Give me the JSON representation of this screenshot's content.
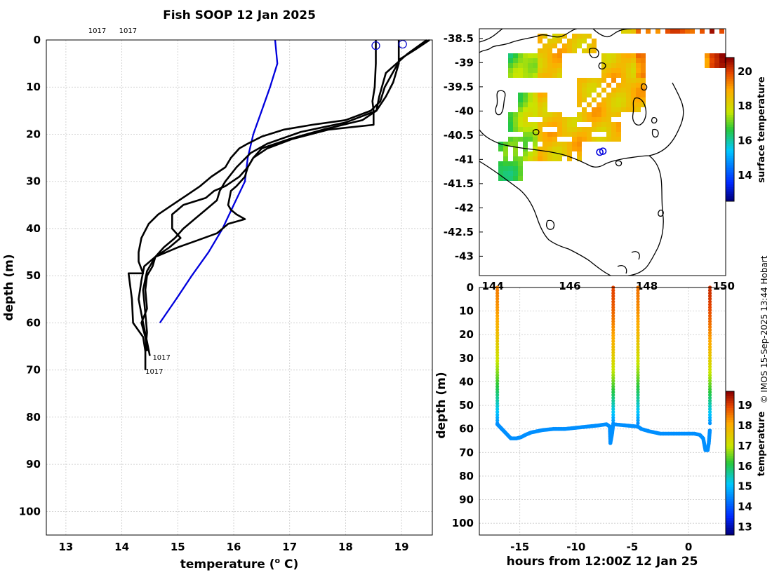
{
  "credit": "© IMOS 15-Sep-2025 13:44 Hobart",
  "chart_data": [
    {
      "type": "line",
      "title": "Fish SOOP 12 Jan 2025",
      "xlabel": "temperature (o C)",
      "xlabel_main": "temperature (",
      "xlabel_sup": "o",
      "xlabel_end": " C)",
      "ylabel": "depth (m)",
      "xlim": [
        12.65,
        19.55
      ],
      "ylim": [
        105,
        0
      ],
      "xticks": [
        13,
        14,
        15,
        16,
        17,
        18,
        19
      ],
      "yticks": [
        0,
        10,
        20,
        30,
        40,
        50,
        60,
        70,
        80,
        90,
        100
      ],
      "profile_labels": [
        {
          "text": "1017",
          "temperature": 13.4,
          "depth": -2.1
        },
        {
          "text": "1017",
          "temperature": 13.95,
          "depth": -2.1
        },
        {
          "text": "1017",
          "temperature": 14.55,
          "depth": 67.2
        },
        {
          "text": "1017",
          "temperature": 14.42,
          "depth": 70.2
        }
      ],
      "surface_markers": [
        {
          "temperature": 18.54,
          "depth": 1.2
        },
        {
          "temperature": 19.02,
          "depth": 0.9
        }
      ],
      "series": [
        {
          "name": "climatology",
          "color": "#0000dd",
          "points": [
            [
              16.74,
              0
            ],
            [
              16.78,
              5
            ],
            [
              16.65,
              10
            ],
            [
              16.5,
              15
            ],
            [
              16.35,
              20
            ],
            [
              16.25,
              25
            ],
            [
              16.2,
              30
            ],
            [
              16.0,
              35
            ],
            [
              15.8,
              40
            ],
            [
              15.55,
              45
            ],
            [
              15.25,
              50
            ],
            [
              14.97,
              55
            ],
            [
              14.68,
              60
            ]
          ]
        },
        {
          "name": "profile 1",
          "color": "#000000",
          "points": [
            [
              19.5,
              0
            ],
            [
              19.25,
              2
            ],
            [
              18.98,
              4
            ],
            [
              18.7,
              10
            ],
            [
              18.62,
              13
            ],
            [
              18.45,
              15
            ],
            [
              18.0,
              17
            ],
            [
              17.4,
              18
            ],
            [
              16.9,
              19
            ],
            [
              16.5,
              20.5
            ],
            [
              16.25,
              22
            ],
            [
              16.1,
              23
            ],
            [
              15.95,
              25
            ],
            [
              15.85,
              27
            ],
            [
              15.6,
              29
            ],
            [
              15.4,
              31
            ],
            [
              15.15,
              33
            ],
            [
              14.9,
              35
            ],
            [
              14.65,
              37
            ],
            [
              14.48,
              39
            ],
            [
              14.35,
              42
            ],
            [
              14.3,
              45
            ],
            [
              14.3,
              47
            ],
            [
              14.38,
              49.5
            ],
            [
              14.12,
              49.5
            ],
            [
              14.18,
              55
            ],
            [
              14.2,
              60
            ],
            [
              14.38,
              63
            ],
            [
              14.42,
              66
            ],
            [
              14.42,
              70
            ]
          ]
        },
        {
          "name": "profile 2",
          "color": "#000000",
          "points": [
            [
              19.45,
              0
            ],
            [
              19.1,
              3
            ],
            [
              18.72,
              7
            ],
            [
              18.6,
              12
            ],
            [
              18.55,
              15
            ],
            [
              18.3,
              17
            ],
            [
              17.6,
              19
            ],
            [
              17.0,
              21
            ],
            [
              16.5,
              23
            ],
            [
              16.35,
              25
            ],
            [
              16.25,
              27
            ],
            [
              16.1,
              29
            ],
            [
              15.85,
              31
            ],
            [
              15.65,
              32
            ],
            [
              15.5,
              33.5
            ],
            [
              15.1,
              35
            ],
            [
              14.9,
              37
            ],
            [
              14.9,
              40
            ],
            [
              15.05,
              42
            ],
            [
              14.85,
              44
            ],
            [
              14.6,
              46
            ],
            [
              14.4,
              48
            ],
            [
              14.35,
              51
            ],
            [
              14.3,
              55
            ],
            [
              14.38,
              60
            ],
            [
              14.45,
              64
            ],
            [
              14.5,
              67
            ]
          ]
        },
        {
          "name": "profile 3",
          "color": "#000000",
          "points": [
            [
              18.95,
              0
            ],
            [
              18.95,
              5
            ],
            [
              18.85,
              9
            ],
            [
              18.72,
              12
            ],
            [
              18.55,
              15
            ],
            [
              18.0,
              17.5
            ],
            [
              17.2,
              19.5
            ],
            [
              16.6,
              22
            ],
            [
              16.3,
              24
            ],
            [
              16.05,
              27
            ],
            [
              15.85,
              30
            ],
            [
              15.75,
              32
            ],
            [
              15.7,
              34
            ],
            [
              15.5,
              36
            ],
            [
              15.3,
              38
            ],
            [
              15.1,
              40
            ],
            [
              14.95,
              42
            ],
            [
              14.75,
              44
            ],
            [
              14.6,
              46
            ],
            [
              14.55,
              48
            ],
            [
              14.45,
              50
            ],
            [
              14.42,
              53
            ],
            [
              14.45,
              57
            ],
            [
              14.35,
              60
            ],
            [
              14.42,
              63
            ],
            [
              14.45,
              66
            ]
          ]
        },
        {
          "name": "profile 4",
          "color": "#000000",
          "points": [
            [
              18.54,
              0
            ],
            [
              18.54,
              5
            ],
            [
              18.52,
              10
            ],
            [
              18.48,
              13
            ],
            [
              18.5,
              15
            ],
            [
              18.5,
              18
            ],
            [
              17.7,
              19
            ],
            [
              17.05,
              21
            ],
            [
              16.6,
              23
            ],
            [
              16.35,
              25
            ],
            [
              16.25,
              27
            ],
            [
              16.2,
              29
            ],
            [
              16.05,
              31
            ],
            [
              15.95,
              32
            ],
            [
              15.9,
              35
            ],
            [
              15.95,
              36
            ],
            [
              16.05,
              37
            ],
            [
              16.2,
              38
            ],
            [
              15.9,
              39
            ],
            [
              15.7,
              41
            ],
            [
              15.35,
              42.5
            ],
            [
              15.0,
              44
            ],
            [
              14.8,
              45
            ],
            [
              14.6,
              46
            ],
            [
              14.45,
              49
            ],
            [
              14.38,
              53
            ],
            [
              14.42,
              58
            ],
            [
              14.45,
              62
            ],
            [
              14.42,
              66
            ]
          ]
        }
      ]
    },
    {
      "type": "heatmap",
      "title": "",
      "colorbar_label": "surface temperature",
      "colorbar_range": [
        12.5,
        20.8
      ],
      "colorbar_ticks": [
        14,
        16,
        18,
        20
      ],
      "latitude_ticks": [
        -38.5,
        -39,
        -39.5,
        -40,
        -40.5,
        -41,
        -41.5,
        -42,
        -42.5,
        -43
      ],
      "longitude_ticks": [
        "144",
        "146",
        "148",
        "150"
      ],
      "lat_range": [
        -43.4,
        -38.3
      ],
      "lon_range": [
        143.65,
        150.05
      ],
      "ship_positions": [
        [
          146.78,
          -40.85
        ],
        [
          146.86,
          -40.83
        ]
      ]
    },
    {
      "type": "scatter",
      "title": "",
      "xlabel": "hours from 12:00Z 12 Jan 25",
      "ylabel": "depth (m)",
      "xlim": [
        -18.6,
        3.3
      ],
      "ylim": [
        105,
        0
      ],
      "xticks": [
        -15,
        -10,
        -5,
        0
      ],
      "yticks": [
        0,
        10,
        20,
        30,
        40,
        50,
        60,
        70,
        80,
        90,
        100
      ],
      "colorbar_label": "temperature",
      "colorbar_range": [
        12.6,
        19.7
      ],
      "colorbar_ticks": [
        13,
        14,
        15,
        16,
        17,
        18,
        19
      ],
      "casts": [
        {
          "hour": -17.0,
          "surface_temp": 18.5
        },
        {
          "hour": -6.7,
          "surface_temp": 19.0
        },
        {
          "hour": -4.5,
          "surface_temp": 18.6
        },
        {
          "hour": 1.9,
          "surface_temp": 19.2
        }
      ],
      "bottom_track": [
        [
          -17.0,
          58
        ],
        [
          -16.6,
          60
        ],
        [
          -16.2,
          62
        ],
        [
          -15.8,
          64
        ],
        [
          -15.3,
          64
        ],
        [
          -14.9,
          63.5
        ],
        [
          -14.5,
          62.5
        ],
        [
          -14.0,
          61.5
        ],
        [
          -13.5,
          61
        ],
        [
          -13.0,
          60.5
        ],
        [
          -12.0,
          60
        ],
        [
          -11.0,
          60
        ],
        [
          -10.0,
          59.5
        ],
        [
          -9.0,
          59
        ],
        [
          -8.0,
          58.5
        ],
        [
          -7.3,
          58
        ],
        [
          -7.0,
          59
        ],
        [
          -6.95,
          66
        ],
        [
          -6.8,
          62
        ],
        [
          -6.7,
          58
        ],
        [
          -4.5,
          59
        ],
        [
          -4.2,
          60
        ],
        [
          -3.5,
          61
        ],
        [
          -3.0,
          61.5
        ],
        [
          -2.5,
          62
        ],
        [
          -1.5,
          62
        ],
        [
          -0.5,
          62
        ],
        [
          0.5,
          62
        ],
        [
          1.0,
          62.5
        ],
        [
          1.3,
          64
        ],
        [
          1.5,
          69
        ],
        [
          1.7,
          69
        ],
        [
          1.8,
          66
        ],
        [
          1.9,
          60
        ]
      ],
      "bottom_temp": 14.5
    }
  ]
}
